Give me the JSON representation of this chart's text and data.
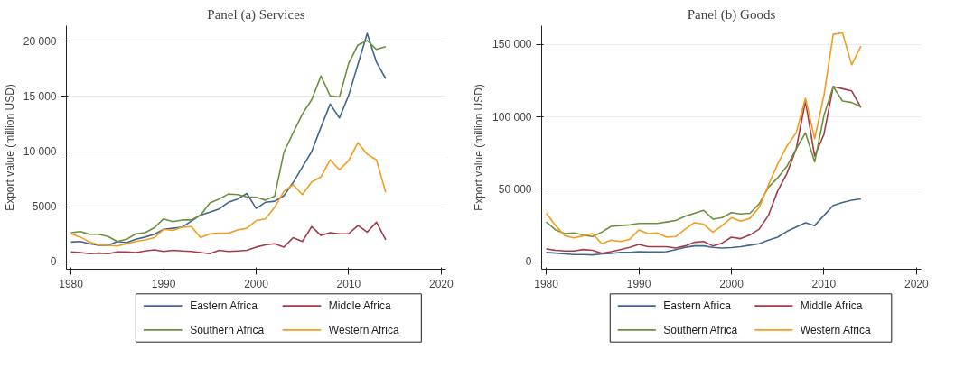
{
  "chart_data": [
    {
      "type": "line",
      "title": "Panel (a) Services",
      "ylabel": "Export value (million USD)",
      "x": [
        1980,
        1981,
        1982,
        1983,
        1984,
        1985,
        1986,
        1987,
        1988,
        1989,
        1990,
        1991,
        1992,
        1993,
        1994,
        1995,
        1996,
        1997,
        1998,
        1999,
        2000,
        2001,
        2002,
        2003,
        2004,
        2005,
        2006,
        2007,
        2008,
        2009,
        2010,
        2011,
        2012,
        2013,
        2014
      ],
      "series": [
        {
          "name": "Eastern Africa",
          "color": "#41678c",
          "values": [
            1800,
            1850,
            1650,
            1500,
            1500,
            1850,
            1750,
            2050,
            2250,
            2500,
            2950,
            3050,
            3150,
            3700,
            4250,
            4500,
            4800,
            5400,
            5700,
            6200,
            4850,
            5400,
            5500,
            6000,
            7200,
            8600,
            10000,
            12200,
            14300,
            13050,
            15100,
            17900,
            20700,
            18100,
            16600
          ]
        },
        {
          "name": "Middle Africa",
          "color": "#a23c4d",
          "values": [
            900,
            850,
            750,
            800,
            750,
            900,
            900,
            850,
            1000,
            1100,
            950,
            1050,
            1000,
            950,
            850,
            750,
            1050,
            950,
            1000,
            1050,
            1350,
            1550,
            1650,
            1350,
            2200,
            1850,
            3200,
            2400,
            2650,
            2550,
            2550,
            3300,
            2700,
            3600,
            2000
          ]
        },
        {
          "name": "Southern Africa",
          "color": "#6c8f3c",
          "values": [
            2650,
            2750,
            2500,
            2500,
            2300,
            1850,
            2050,
            2550,
            2650,
            3100,
            3900,
            3650,
            3800,
            3800,
            4250,
            5350,
            5700,
            6150,
            6100,
            5900,
            5850,
            5600,
            5950,
            9950,
            11700,
            13400,
            14700,
            16850,
            15050,
            14950,
            18000,
            19650,
            20050,
            19250,
            19500
          ]
        },
        {
          "name": "Western Africa",
          "color": "#f39c1e",
          "values": [
            2550,
            2250,
            1800,
            1550,
            1500,
            1450,
            1650,
            1850,
            2000,
            2200,
            2950,
            2850,
            3150,
            3200,
            2200,
            2550,
            2600,
            2600,
            2900,
            3050,
            3750,
            3900,
            4950,
            6400,
            7000,
            6100,
            7250,
            7700,
            9250,
            8350,
            9200,
            10800,
            9750,
            9250,
            6300
          ]
        }
      ],
      "xlim": [
        1979.5,
        2020.5
      ],
      "xticks": [
        1980,
        1990,
        2000,
        2010,
        2020
      ],
      "ylim": [
        -660,
        21400
      ],
      "yticks": [
        0,
        5000,
        {
          "value": 10000,
          "label": "10 000"
        },
        {
          "value": 15000,
          "label": "15 000"
        },
        {
          "value": 20000,
          "label": "20 000"
        }
      ],
      "grid": "y",
      "legend": "bottom"
    },
    {
      "type": "line",
      "title": "Panel (b) Goods",
      "ylabel": "Export value (million USD)",
      "x": [
        1980,
        1981,
        1982,
        1983,
        1984,
        1985,
        1986,
        1987,
        1988,
        1989,
        1990,
        1991,
        1992,
        1993,
        1994,
        1995,
        1996,
        1997,
        1998,
        1999,
        2000,
        2001,
        2002,
        2003,
        2004,
        2005,
        2006,
        2007,
        2008,
        2009,
        2010,
        2011,
        2012,
        2013,
        2014
      ],
      "series": [
        {
          "name": "Eastern Africa",
          "color": "#41678c",
          "values": [
            6500,
            6000,
            5500,
            5000,
            5000,
            4800,
            5500,
            5800,
            6500,
            6500,
            7000,
            6800,
            6800,
            7000,
            8500,
            10000,
            11000,
            11000,
            10000,
            9500,
            9800,
            10500,
            11500,
            12500,
            15000,
            17000,
            21000,
            24000,
            27000,
            25000,
            32000,
            39000,
            41000,
            42500,
            43500
          ]
        },
        {
          "name": "Middle Africa",
          "color": "#a23c4d",
          "values": [
            9000,
            8000,
            7500,
            7500,
            8500,
            8000,
            6000,
            7000,
            8500,
            10000,
            12000,
            10500,
            10500,
            10500,
            9500,
            11000,
            13500,
            14000,
            11000,
            13000,
            17000,
            16000,
            18500,
            22500,
            32000,
            49000,
            61000,
            78000,
            111000,
            73000,
            88000,
            121000,
            119500,
            118000,
            106500
          ]
        },
        {
          "name": "Southern Africa",
          "color": "#6c8f3c",
          "values": [
            27500,
            22000,
            19500,
            20000,
            18500,
            17500,
            20500,
            24500,
            25000,
            25500,
            26500,
            26500,
            26500,
            27500,
            28500,
            31500,
            33500,
            35500,
            29500,
            30500,
            34000,
            33000,
            33500,
            40000,
            51500,
            58000,
            66000,
            78000,
            89000,
            69000,
            101000,
            121000,
            111000,
            110000,
            107000
          ]
        },
        {
          "name": "Western Africa",
          "color": "#f39c1e",
          "values": [
            33500,
            25000,
            18000,
            16500,
            18000,
            19500,
            12500,
            15000,
            14000,
            15500,
            22000,
            19500,
            20000,
            17000,
            17500,
            22500,
            27000,
            26000,
            20500,
            25000,
            30500,
            28000,
            30000,
            37500,
            53000,
            67500,
            80000,
            89000,
            113000,
            85000,
            115000,
            157000,
            158000,
            136000,
            149000
          ]
        }
      ],
      "xlim": [
        1979.5,
        2020.5
      ],
      "xticks": [
        1980,
        1990,
        2000,
        2010,
        2020
      ],
      "ylim": [
        -5100,
        163000
      ],
      "yticks": [
        0,
        {
          "value": 50000,
          "label": "50 000"
        },
        {
          "value": 100000,
          "label": "100 000"
        },
        {
          "value": 150000,
          "label": "150 000"
        }
      ],
      "grid": "y",
      "legend": "bottom"
    }
  ]
}
